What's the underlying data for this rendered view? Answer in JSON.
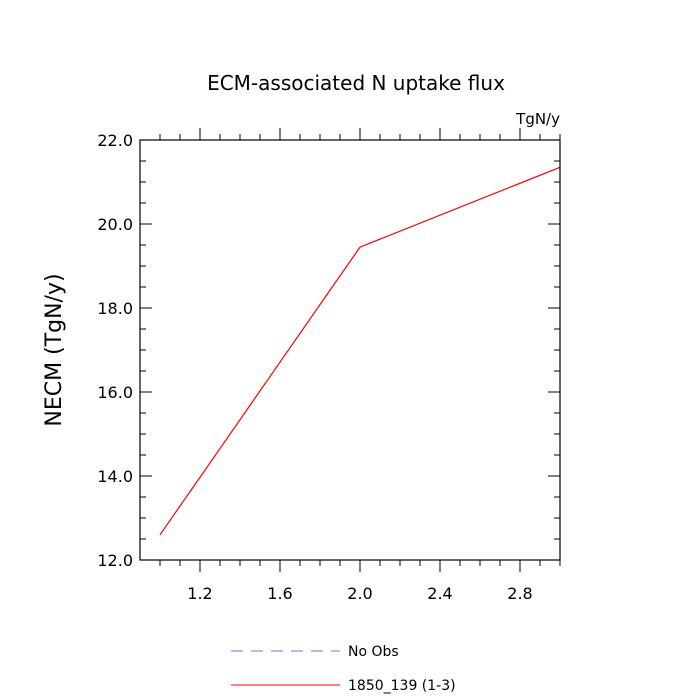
{
  "chart_data": {
    "type": "line",
    "title": "ECM-associated N uptake flux",
    "units_label": "TgN/y",
    "xlabel": "",
    "ylabel": "NECM  (TgN/y)",
    "xlim": [
      0.9,
      3.0
    ],
    "ylim": [
      12.0,
      22.0
    ],
    "x_ticks": [
      1.2,
      1.6,
      2.0,
      2.4,
      2.8
    ],
    "x_tick_labels": [
      "1.2",
      "1.6",
      "2.0",
      "2.4",
      "2.8"
    ],
    "y_ticks": [
      12.0,
      14.0,
      16.0,
      18.0,
      20.0,
      22.0
    ],
    "y_tick_labels": [
      "12.0",
      "14.0",
      "16.0",
      "18.0",
      "20.0",
      "22.0"
    ],
    "grid": false,
    "legend_position": "bottom",
    "series": [
      {
        "name": "1850_139 (1-3)",
        "color": "#ff0000",
        "dash": "solid",
        "x": [
          1.0,
          2.0,
          3.0
        ],
        "y": [
          12.6,
          19.45,
          21.35
        ]
      }
    ],
    "legend": [
      {
        "label": "No Obs",
        "color": "#7070e0",
        "dash": "dashed"
      },
      {
        "label": "1850_139 (1-3)",
        "color": "#ff0000",
        "dash": "solid"
      }
    ]
  }
}
